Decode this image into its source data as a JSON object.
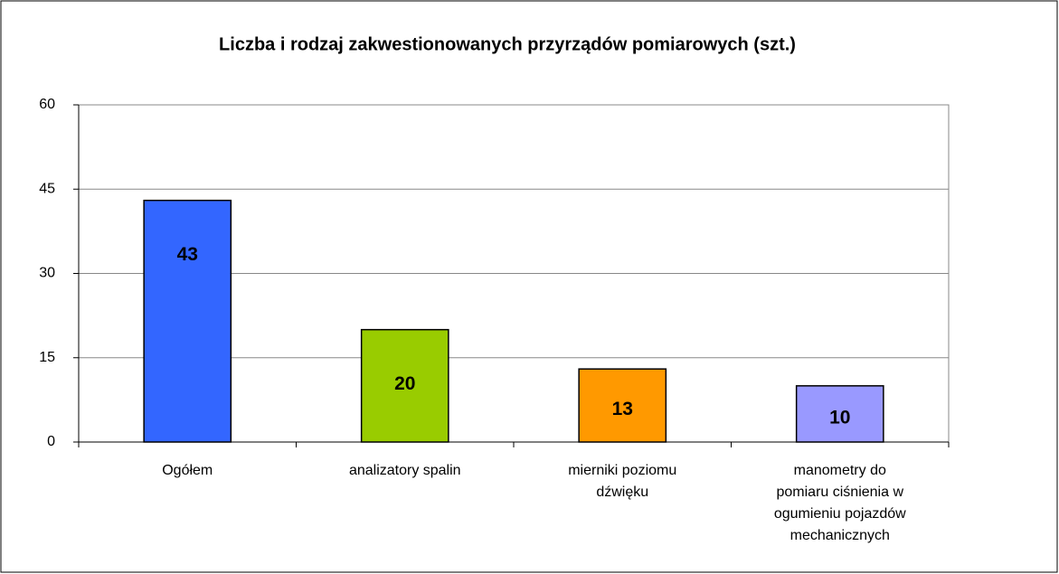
{
  "chart_data": {
    "type": "bar",
    "title": "Liczba i rodzaj zakwestionowanych przyrządów pomiarowych (szt.)",
    "categories": [
      "Ogółem",
      "analizatory spalin",
      "mierniki poziomu\ndźwięku",
      "manometry do\npomiaru ciśnienia w\nogumieniu pojazdów\nmechanicznych"
    ],
    "values": [
      43,
      20,
      13,
      10
    ],
    "colors": [
      "#3366ff",
      "#99cc00",
      "#ff9900",
      "#9999ff"
    ],
    "ylim": [
      0,
      60
    ],
    "yticks": [
      0,
      15,
      30,
      45,
      60
    ],
    "grid": true
  }
}
